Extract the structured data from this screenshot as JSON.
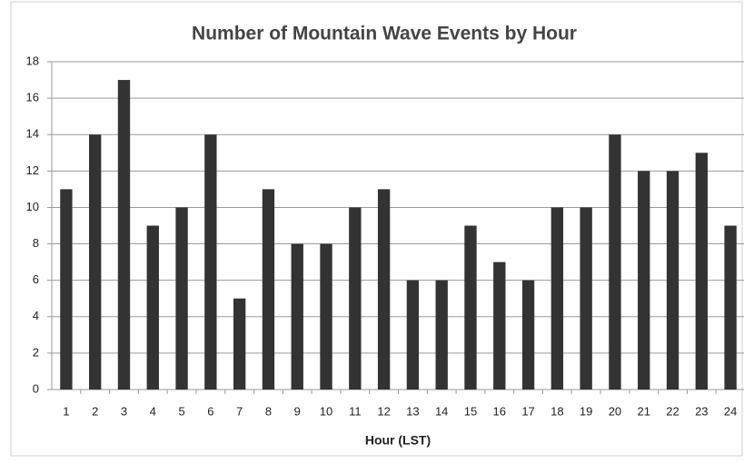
{
  "chart_data": {
    "type": "bar",
    "title": "Number of Mountain Wave Events by Hour",
    "x_label": "Hour (LST)",
    "categories": [
      "1",
      "2",
      "3",
      "4",
      "5",
      "6",
      "7",
      "8",
      "9",
      "10",
      "11",
      "12",
      "13",
      "14",
      "15",
      "16",
      "17",
      "18",
      "19",
      "20",
      "21",
      "22",
      "23",
      "24"
    ],
    "values": [
      11,
      14,
      17,
      9,
      10,
      14,
      5,
      11,
      8,
      8,
      10,
      11,
      6,
      6,
      9,
      7,
      6,
      10,
      10,
      14,
      12,
      12,
      13,
      9
    ],
    "color": "#333333",
    "ylim": [
      0,
      18
    ],
    "yticks": [
      0,
      2,
      4,
      6,
      8,
      10,
      12,
      14,
      16,
      18
    ],
    "grid": true
  }
}
